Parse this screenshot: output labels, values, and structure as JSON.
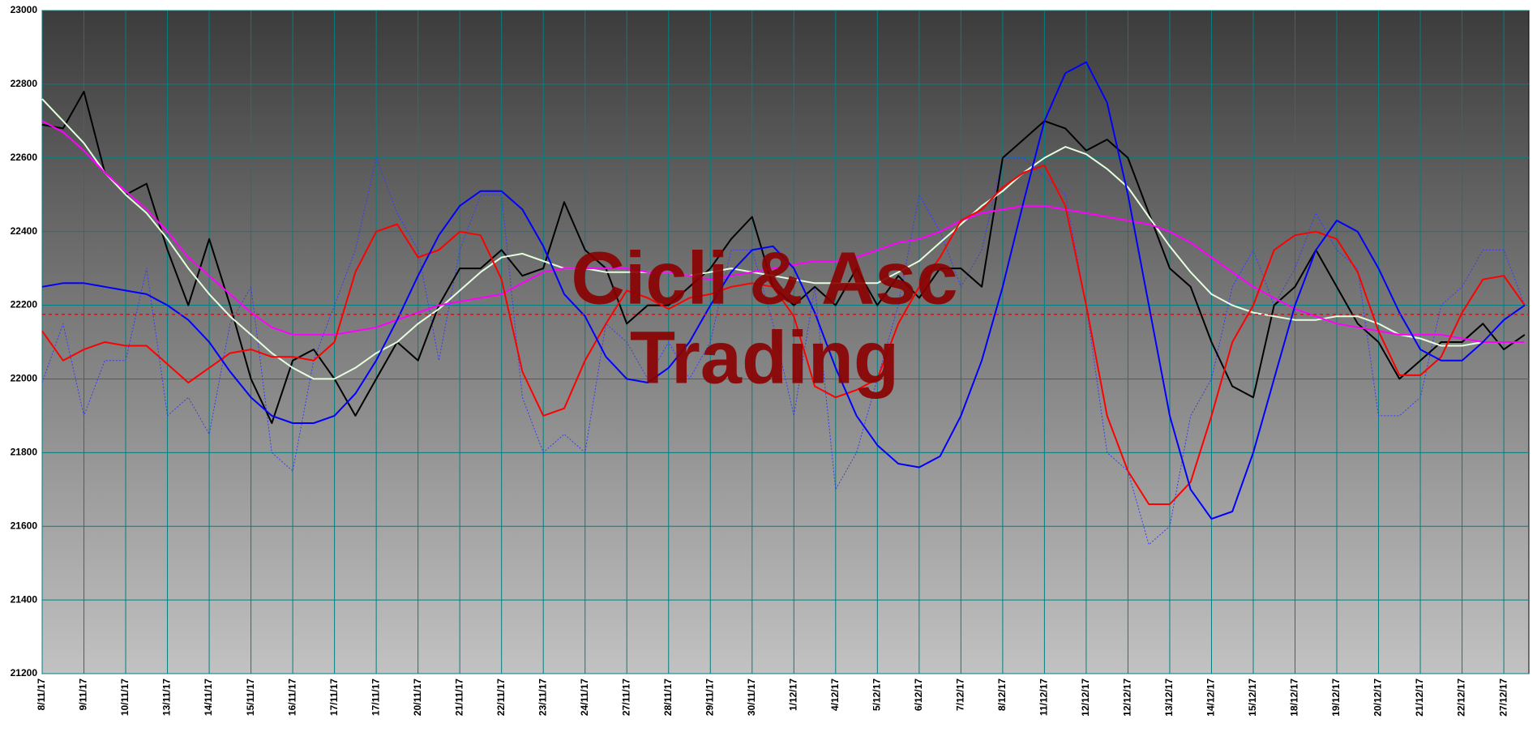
{
  "chart_data": {
    "type": "line",
    "watermark": [
      "Cicli & Asc",
      "Trading"
    ],
    "categories": [
      "8/11/17",
      null,
      "9/11/17",
      null,
      "10/11/17",
      null,
      "13/11/17",
      null,
      "14/11/17",
      null,
      "15/11/17",
      null,
      "16/11/17",
      null,
      "17/11/17",
      null,
      "17/11/17",
      null,
      "20/11/17",
      null,
      "21/11/17",
      null,
      "22/11/17",
      null,
      "23/11/17",
      null,
      "24/11/17",
      null,
      "27/11/17",
      null,
      "28/11/17",
      null,
      "29/11/17",
      null,
      "30/11/17",
      null,
      "1/12/17",
      null,
      "4/12/17",
      null,
      "5/12/17",
      null,
      "6/12/17",
      null,
      "7/12/17",
      null,
      "8/12/17",
      null,
      "11/12/17",
      null,
      "12/12/17",
      null,
      "12/12/17",
      null,
      "13/12/17",
      null,
      "14/12/17",
      null,
      "15/12/17",
      null,
      "18/12/17",
      null,
      "19/12/17",
      null,
      "20/12/17",
      null,
      "21/12/17",
      null,
      "22/12/17",
      null,
      "27/12/17",
      null
    ],
    "series": [
      {
        "color": "#3a3aff",
        "dashed": true,
        "values": [
          21990,
          22150,
          21900,
          22050,
          22050,
          22300,
          21900,
          21950,
          21850,
          22150,
          22250,
          21800,
          21750,
          22050,
          22200,
          22350,
          22600,
          22450,
          22350,
          22050,
          22350,
          22500,
          22500,
          21950,
          21800,
          21850,
          21800,
          22150,
          22100,
          22000,
          22100,
          22000,
          22100,
          22350,
          22350,
          22150,
          21900,
          22250,
          21700,
          21800,
          22000,
          22200,
          22500,
          22400,
          22250,
          22350,
          22600,
          22600,
          22550,
          22500,
          22200,
          21800,
          21750,
          21550,
          21600,
          21900,
          22000,
          22250,
          22350,
          22200,
          22300,
          22450,
          22350,
          22300,
          21900,
          21900,
          21950,
          22200,
          22250,
          22350,
          22350,
          22200
        ]
      },
      {
        "color": "#000000",
        "values": [
          22690,
          22680,
          22780,
          22560,
          22500,
          22530,
          22350,
          22200,
          22380,
          22200,
          22000,
          21880,
          22050,
          22080,
          22000,
          21900,
          22000,
          22100,
          22050,
          22200,
          22300,
          22300,
          22350,
          22280,
          22300,
          22480,
          22350,
          22300,
          22150,
          22200,
          22200,
          22250,
          22300,
          22380,
          22440,
          22250,
          22200,
          22250,
          22200,
          22300,
          22200,
          22280,
          22220,
          22300,
          22300,
          22250,
          22600,
          22650,
          22700,
          22680,
          22620,
          22650,
          22600,
          22450,
          22300,
          22250,
          22100,
          21980,
          21950,
          22200,
          22250,
          22350,
          22250,
          22150,
          22100,
          22000,
          22050,
          22100,
          22100,
          22150,
          22080,
          22120
        ]
      },
      {
        "color": "#e6ffe0",
        "values": [
          22760,
          22700,
          22640,
          22560,
          22500,
          22450,
          22380,
          22300,
          22230,
          22170,
          22120,
          22070,
          22030,
          22000,
          22000,
          22030,
          22070,
          22100,
          22150,
          22190,
          22240,
          22290,
          22330,
          22340,
          22320,
          22300,
          22300,
          22290,
          22290,
          22290,
          22290,
          22280,
          22290,
          22300,
          22290,
          22280,
          22270,
          22260,
          22260,
          22260,
          22260,
          22290,
          22320,
          22370,
          22420,
          22470,
          22510,
          22560,
          22600,
          22630,
          22610,
          22570,
          22520,
          22440,
          22360,
          22290,
          22230,
          22200,
          22180,
          22170,
          22160,
          22160,
          22170,
          22170,
          22150,
          22120,
          22110,
          22090,
          22090,
          22100,
          22100,
          22100
        ]
      },
      {
        "color": "#ff00ff",
        "values": [
          22700,
          22670,
          22620,
          22560,
          22510,
          22460,
          22400,
          22330,
          22280,
          22230,
          22180,
          22140,
          22120,
          22120,
          22120,
          22130,
          22140,
          22160,
          22180,
          22200,
          22210,
          22220,
          22230,
          22260,
          22290,
          22300,
          22300,
          22300,
          22300,
          22290,
          22290,
          22280,
          22270,
          22280,
          22290,
          22300,
          22310,
          22320,
          22320,
          22330,
          22350,
          22370,
          22380,
          22400,
          22430,
          22450,
          22460,
          22470,
          22470,
          22460,
          22450,
          22440,
          22430,
          22420,
          22400,
          22370,
          22330,
          22290,
          22250,
          22220,
          22190,
          22170,
          22150,
          22140,
          22130,
          22120,
          22120,
          22120,
          22110,
          22100,
          22100,
          22100
        ]
      },
      {
        "color": "#ff0000",
        "values": [
          22130,
          22050,
          22080,
          22100,
          22090,
          22090,
          22040,
          21990,
          22030,
          22070,
          22080,
          22060,
          22060,
          22050,
          22100,
          22290,
          22400,
          22420,
          22330,
          22350,
          22400,
          22390,
          22270,
          22020,
          21900,
          21920,
          22050,
          22150,
          22240,
          22220,
          22190,
          22220,
          22230,
          22250,
          22260,
          22250,
          22170,
          21980,
          21950,
          21970,
          22000,
          22150,
          22250,
          22330,
          22430,
          22460,
          22520,
          22560,
          22580,
          22470,
          22200,
          21900,
          21750,
          21660,
          21660,
          21720,
          21900,
          22100,
          22200,
          22350,
          22390,
          22400,
          22380,
          22290,
          22130,
          22010,
          22010,
          22060,
          22180,
          22270,
          22280,
          22200
        ]
      },
      {
        "color": "#0000ff",
        "values": [
          22250,
          22260,
          22260,
          22250,
          22240,
          22230,
          22200,
          22160,
          22100,
          22020,
          21950,
          21900,
          21880,
          21880,
          21900,
          21960,
          22050,
          22160,
          22280,
          22390,
          22470,
          22510,
          22510,
          22460,
          22360,
          22230,
          22170,
          22060,
          22000,
          21990,
          22030,
          22100,
          22200,
          22290,
          22350,
          22360,
          22300,
          22180,
          22030,
          21900,
          21820,
          21770,
          21760,
          21790,
          21900,
          22050,
          22250,
          22480,
          22700,
          22830,
          22860,
          22750,
          22500,
          22200,
          21900,
          21700,
          21620,
          21640,
          21800,
          22000,
          22200,
          22350,
          22430,
          22400,
          22300,
          22180,
          22080,
          22050,
          22050,
          22100,
          22160,
          22200
        ]
      }
    ],
    "reference_line": {
      "value": 22175,
      "color": "#ff0000"
    },
    "ylim": [
      21200,
      23000
    ],
    "yticks": [
      21200,
      21400,
      21600,
      21800,
      22000,
      22200,
      22400,
      22600,
      22800,
      23000
    ],
    "grid": true,
    "grid_color": "#008080"
  }
}
